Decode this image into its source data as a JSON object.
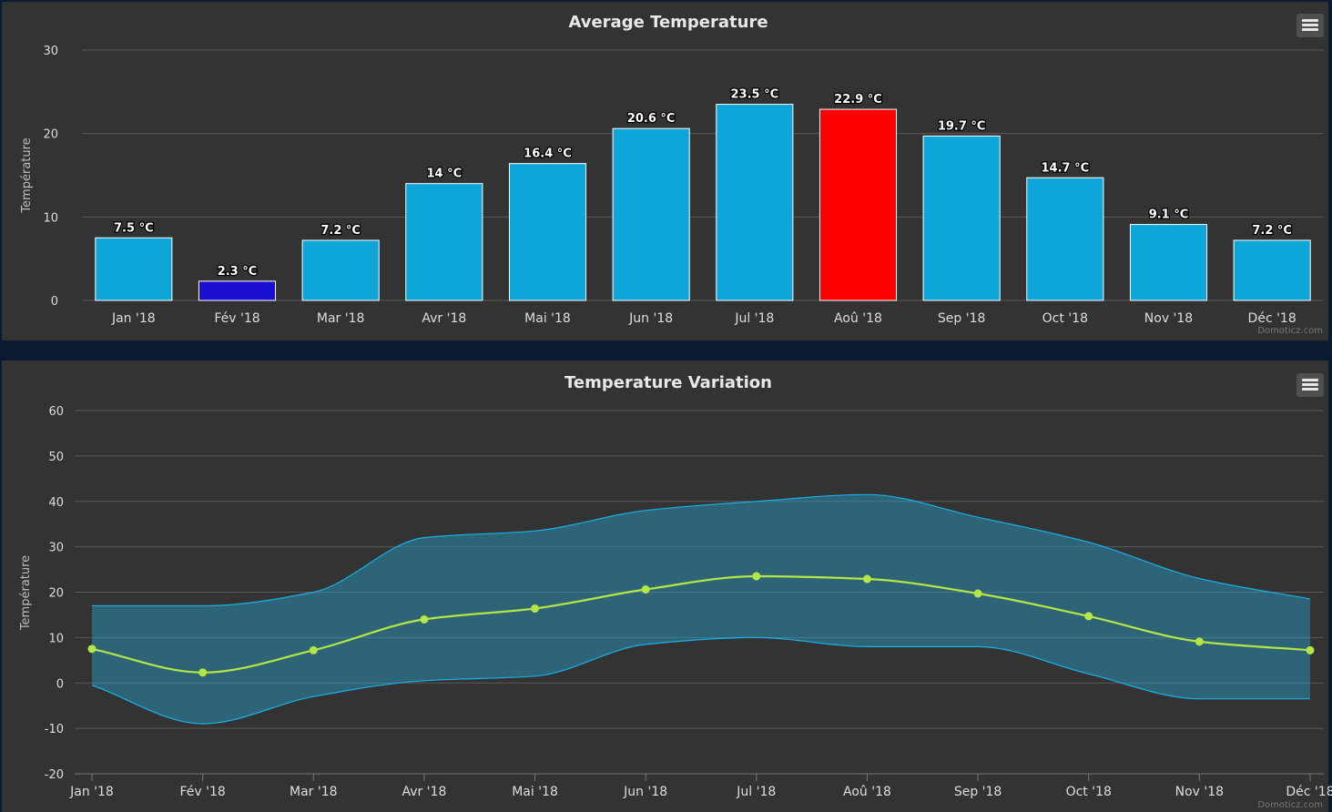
{
  "colors": {
    "bar_default": "#0ea6d8",
    "bar_highlight_low": "#1a0fd0",
    "bar_highlight_high": "#ff0000",
    "range_fill": "rgba(39,160,205,0.45)",
    "range_line": "#1ab0e6",
    "avg_line": "#b4e645"
  },
  "menu": {
    "icon": "hamburger-menu-icon"
  },
  "chart_data": [
    {
      "type": "bar",
      "title": "Average Temperature",
      "ylabel": "Température",
      "credit": "Domoticz.com",
      "categories": [
        "Jan '18",
        "Fév '18",
        "Mar '18",
        "Avr '18",
        "Mai '18",
        "Jun '18",
        "Jul '18",
        "Aoû '18",
        "Sep '18",
        "Oct '18",
        "Nov '18",
        "Déc '18"
      ],
      "values": [
        7.5,
        2.3,
        7.2,
        14,
        16.4,
        20.6,
        23.5,
        22.9,
        19.7,
        14.7,
        9.1,
        7.2
      ],
      "data_labels": [
        "7.5 °C",
        "2.3 °C",
        "7.2 °C",
        "14 °C",
        "16.4 °C",
        "20.6 °C",
        "23.5 °C",
        "22.9 °C",
        "19.7 °C",
        "14.7 °C",
        "9.1 °C",
        "7.2 °C"
      ],
      "bar_colors": [
        "#0ea6d8",
        "#1a0fd0",
        "#0ea6d8",
        "#0ea6d8",
        "#0ea6d8",
        "#0ea6d8",
        "#0ea6d8",
        "#ff0000",
        "#0ea6d8",
        "#0ea6d8",
        "#0ea6d8",
        "#0ea6d8"
      ],
      "yticks": [
        0,
        10,
        20,
        30
      ],
      "ylim": [
        0,
        30
      ],
      "grid": true
    },
    {
      "type": "area",
      "title": "Temperature Variation",
      "ylabel": "Température",
      "credit": "Domoticz.com",
      "categories": [
        "Jan '18",
        "Fév '18",
        "Mar '18",
        "Avr '18",
        "Mai '18",
        "Jun '18",
        "Jul '18",
        "Aoû '18",
        "Sep '18",
        "Oct '18",
        "Nov '18",
        "Déc '18"
      ],
      "series": [
        {
          "kind": "range",
          "low": [
            -0.5,
            -9,
            -3,
            0.5,
            1.5,
            8.5,
            10,
            8,
            8,
            2,
            -3.5,
            -3.5
          ],
          "high": [
            17,
            17,
            20,
            32,
            33.5,
            38,
            40,
            41.5,
            36.5,
            31,
            23,
            18.5
          ]
        },
        {
          "kind": "line",
          "values": [
            7.5,
            2.3,
            7.2,
            14,
            16.4,
            20.6,
            23.5,
            22.9,
            19.7,
            14.7,
            9.1,
            7.2
          ]
        }
      ],
      "yticks": [
        -20,
        -10,
        0,
        10,
        20,
        30,
        40,
        50,
        60
      ],
      "ylim": [
        -20,
        60
      ],
      "grid": true
    }
  ]
}
